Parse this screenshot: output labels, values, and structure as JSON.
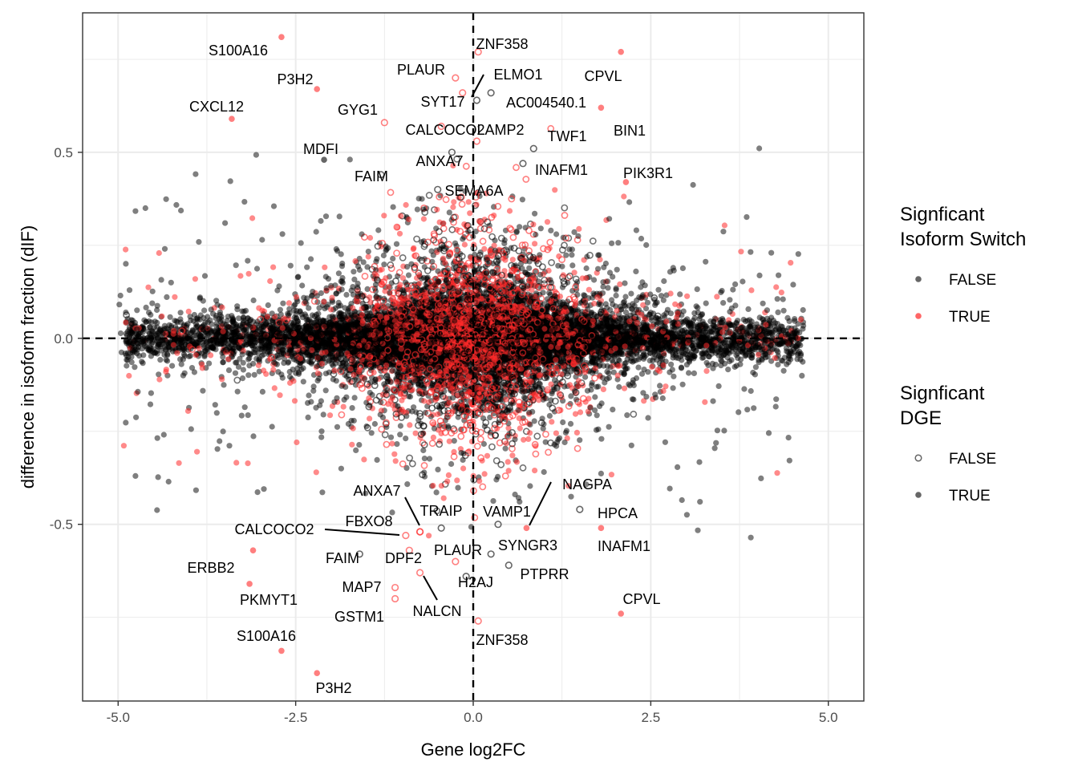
{
  "chart_data": {
    "type": "scatter",
    "xlabel": "Gene log2FC",
    "ylabel": "difference in isoform fraction (dIF)",
    "xlim": [
      -5.5,
      5.5
    ],
    "ylim": [
      -0.975,
      0.875
    ],
    "x_ticks": [
      {
        "value": -5.0,
        "label": "-5.0"
      },
      {
        "value": -2.5,
        "label": "-2.5"
      },
      {
        "value": 0.0,
        "label": "0.0"
      },
      {
        "value": 2.5,
        "label": "2.5"
      },
      {
        "value": 5.0,
        "label": "5.0"
      }
    ],
    "y_ticks": [
      {
        "value": -0.5,
        "label": "-0.5"
      },
      {
        "value": 0.0,
        "label": "0.0"
      },
      {
        "value": 0.5,
        "label": "0.5"
      }
    ],
    "grid": true,
    "reference_lines": {
      "vertical_x": 0,
      "horizontal_y": 0,
      "style": "dashed"
    },
    "colors": {
      "switch_false": "#000000",
      "switch_true": "#ff0000",
      "grid": "#ebebeb",
      "panel_border": "#333333"
    },
    "legends": [
      {
        "title_lines": [
          "Signficant",
          "Isoform Switch"
        ],
        "encoding": "color",
        "entries": [
          {
            "label": "FALSE",
            "color": "#000000"
          },
          {
            "label": "TRUE",
            "color": "#ff0000"
          }
        ]
      },
      {
        "title_lines": [
          "Signficant",
          "DGE"
        ],
        "encoding": "shape",
        "entries": [
          {
            "label": "FALSE",
            "shape": "open-circle"
          },
          {
            "label": "TRUE",
            "shape": "filled-circle"
          }
        ]
      }
    ],
    "legend_position": "right",
    "background_cloud": {
      "description_note": "dense cloud of thousands of points centered at dIF 0",
      "x_range": [
        -5.0,
        4.65
      ],
      "center_y": 0.0
    },
    "highlighted_points": [
      {
        "gene": "S100A16",
        "x": -2.7,
        "y": 0.81,
        "switch": true,
        "dge": true
      },
      {
        "gene": "P3H2",
        "x": -2.2,
        "y": 0.67,
        "switch": true,
        "dge": true
      },
      {
        "gene": "CXCL12",
        "x": -3.4,
        "y": 0.59,
        "switch": true,
        "dge": true
      },
      {
        "gene": "MDFI",
        "x": -2.1,
        "y": 0.48,
        "switch": false,
        "dge": true
      },
      {
        "gene": "GYG1",
        "x": -1.25,
        "y": 0.58,
        "switch": true,
        "dge": false
      },
      {
        "gene": "PLAUR",
        "x": -0.25,
        "y": 0.7,
        "switch": true,
        "dge": false
      },
      {
        "gene": "SYT17",
        "x": -0.15,
        "y": 0.66,
        "switch": true,
        "dge": false
      },
      {
        "gene": "ZNF358",
        "x": 0.07,
        "y": 0.77,
        "switch": true,
        "dge": false
      },
      {
        "gene": "ELMO1",
        "x": 0.05,
        "y": 0.64,
        "switch": false,
        "dge": false
      },
      {
        "gene": "AC004540.1",
        "x": 0.25,
        "y": 0.66,
        "switch": false,
        "dge": false
      },
      {
        "gene": "CPVL",
        "x": 2.08,
        "y": 0.77,
        "switch": true,
        "dge": true
      },
      {
        "gene": "CALCOCO2",
        "x": -0.45,
        "y": 0.57,
        "switch": true,
        "dge": false
      },
      {
        "gene": "LAMP2",
        "x": 0.05,
        "y": 0.53,
        "switch": true,
        "dge": false
      },
      {
        "gene": "TWF1",
        "x": 0.85,
        "y": 0.51,
        "switch": false,
        "dge": false
      },
      {
        "gene": "BIN1",
        "x": 1.8,
        "y": 0.62,
        "switch": true,
        "dge": true
      },
      {
        "gene": "ANXA7",
        "x": -0.3,
        "y": 0.5,
        "switch": false,
        "dge": false
      },
      {
        "gene": "FAIM",
        "x": -1.3,
        "y": 0.44,
        "switch": false,
        "dge": false
      },
      {
        "gene": "INAFM1",
        "x": 0.7,
        "y": 0.47,
        "switch": false,
        "dge": false
      },
      {
        "gene": "PIK3R1",
        "x": 2.15,
        "y": 0.42,
        "switch": true,
        "dge": true
      },
      {
        "gene": "SEMA6A",
        "x": -0.5,
        "y": 0.4,
        "switch": false,
        "dge": false
      },
      {
        "gene": "NAGPA",
        "x": 0.75,
        "y": -0.51,
        "switch": true,
        "dge": true
      },
      {
        "gene": "ANXA7",
        "x": -0.75,
        "y": -0.52,
        "switch": true,
        "dge": false
      },
      {
        "gene": "TRAIP",
        "x": -0.45,
        "y": -0.51,
        "switch": false,
        "dge": false
      },
      {
        "gene": "VAMP1",
        "x": 0.35,
        "y": -0.5,
        "switch": false,
        "dge": false
      },
      {
        "gene": "HPCA",
        "x": 1.5,
        "y": -0.46,
        "switch": false,
        "dge": false
      },
      {
        "gene": "CALCOCO2",
        "x": -0.95,
        "y": -0.53,
        "switch": true,
        "dge": false
      },
      {
        "gene": "FBXO8",
        "x": -0.75,
        "y": -0.52,
        "switch": true,
        "dge": false
      },
      {
        "gene": "INAFM1",
        "x": 1.8,
        "y": -0.51,
        "switch": true,
        "dge": true
      },
      {
        "gene": "SYNGR3",
        "x": 0.25,
        "y": -0.58,
        "switch": false,
        "dge": false
      },
      {
        "gene": "PLAUR",
        "x": -0.25,
        "y": -0.6,
        "switch": true,
        "dge": false
      },
      {
        "gene": "FAIM",
        "x": -1.6,
        "y": -0.58,
        "switch": false,
        "dge": false
      },
      {
        "gene": "DPF2",
        "x": -0.9,
        "y": -0.57,
        "switch": true,
        "dge": false
      },
      {
        "gene": "ERBB2",
        "x": -3.1,
        "y": -0.57,
        "switch": true,
        "dge": true
      },
      {
        "gene": "PTPRR",
        "x": 0.5,
        "y": -0.61,
        "switch": false,
        "dge": false
      },
      {
        "gene": "H2AJ",
        "x": -0.1,
        "y": -0.64,
        "switch": false,
        "dge": false
      },
      {
        "gene": "MAP7",
        "x": -1.1,
        "y": -0.67,
        "switch": true,
        "dge": false
      },
      {
        "gene": "PKMYT1",
        "x": -3.15,
        "y": -0.66,
        "switch": true,
        "dge": true
      },
      {
        "gene": "NALCN",
        "x": -0.75,
        "y": -0.63,
        "switch": true,
        "dge": false
      },
      {
        "gene": "GSTM1",
        "x": -1.1,
        "y": -0.7,
        "switch": true,
        "dge": false
      },
      {
        "gene": "CPVL",
        "x": 2.08,
        "y": -0.74,
        "switch": true,
        "dge": true
      },
      {
        "gene": "S100A16",
        "x": -2.7,
        "y": -0.84,
        "switch": true,
        "dge": true
      },
      {
        "gene": "ZNF358",
        "x": 0.07,
        "y": -0.76,
        "switch": true,
        "dge": false
      },
      {
        "gene": "P3H2",
        "x": -2.2,
        "y": -0.9,
        "switch": true,
        "dge": true
      }
    ]
  }
}
